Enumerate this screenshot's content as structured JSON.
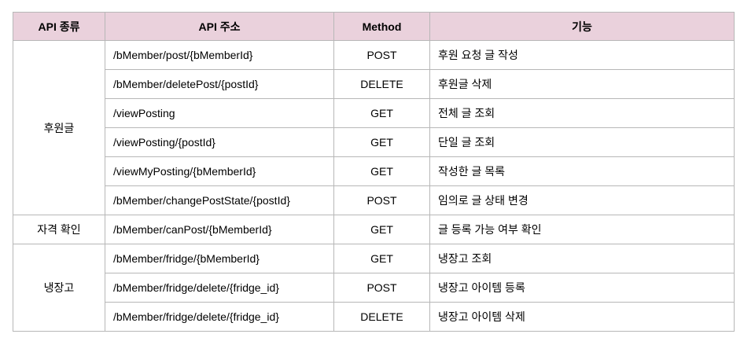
{
  "headers": {
    "category": "API 종류",
    "path": "API 주소",
    "method": "Method",
    "function": "기능"
  },
  "groups": [
    {
      "category": "후원글",
      "rows": [
        {
          "path": "/bMember/post/{bMemberId}",
          "method": "POST",
          "function": "후원 요청 글 작성"
        },
        {
          "path": "/bMember/deletePost/{postId}",
          "method": "DELETE",
          "function": "후원글 삭제"
        },
        {
          "path": "/viewPosting",
          "method": "GET",
          "function": "전체 글 조회"
        },
        {
          "path": "/viewPosting/{postId}",
          "method": "GET",
          "function": "단일 글 조회"
        },
        {
          "path": "/viewMyPosting/{bMemberId}",
          "method": "GET",
          "function": "작성한 글 목록"
        },
        {
          "path": "/bMember/changePostState/{postId}",
          "method": "POST",
          "function": "임의로 글 상태 변경"
        }
      ]
    },
    {
      "category": "자격 확인",
      "rows": [
        {
          "path": "/bMember/canPost/{bMemberId}",
          "method": "GET",
          "function": "글 등록 가능 여부 확인"
        }
      ]
    },
    {
      "category": "냉장고",
      "rows": [
        {
          "path": "/bMember/fridge/{bMemberId}",
          "method": "GET",
          "function": "냉장고 조회"
        },
        {
          "path": "/bMember/fridge/delete/{fridge_id}",
          "method": "POST",
          "function": "냉장고 아이템 등록"
        },
        {
          "path": "/bMember/fridge/delete/{fridge_id}",
          "method": "DELETE",
          "function": "냉장고 아이템 삭제"
        }
      ]
    }
  ]
}
